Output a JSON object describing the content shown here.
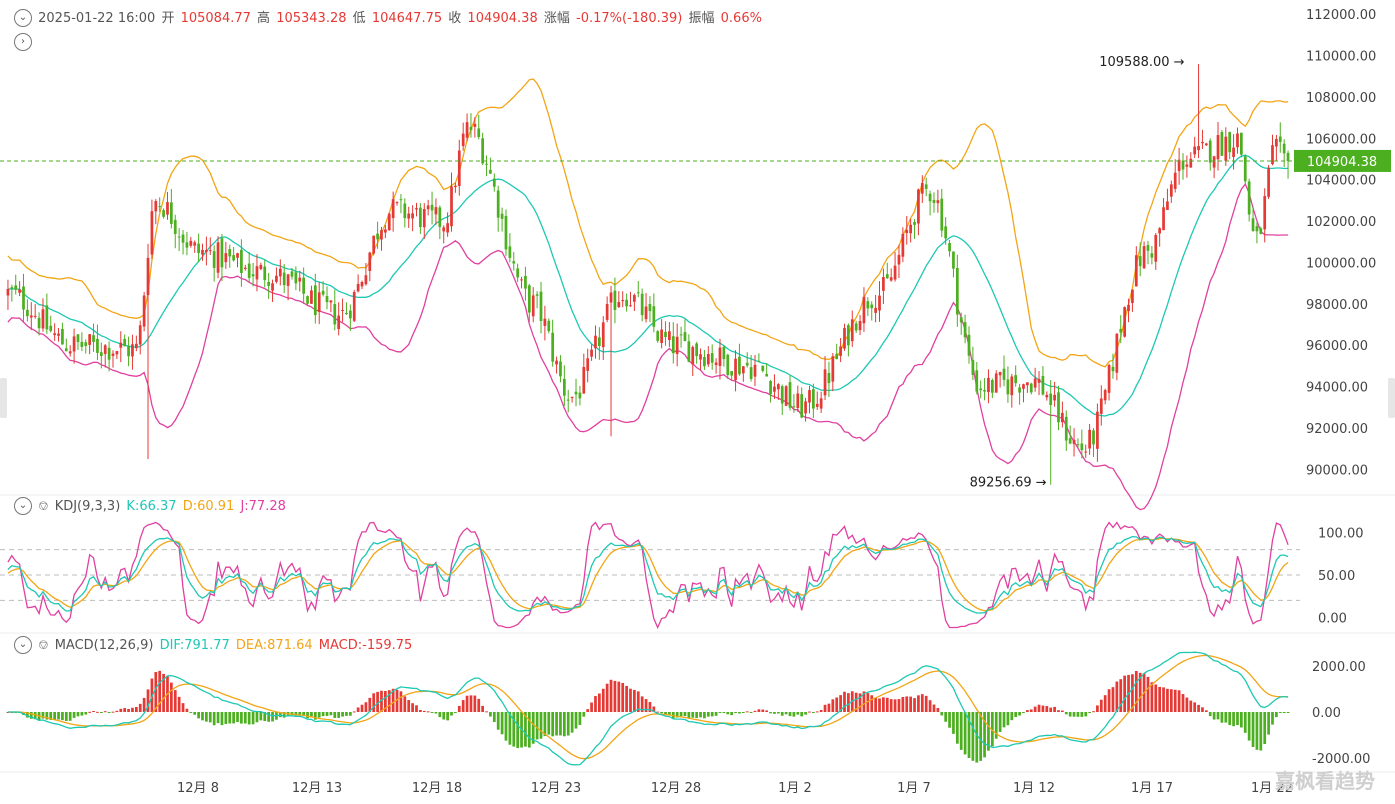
{
  "header": {
    "date": "2025-01-22 16:00",
    "open_label": "开",
    "open": "105084.77",
    "high_label": "高",
    "high": "105343.28",
    "low_label": "低",
    "low": "104647.75",
    "close_label": "收",
    "close": "104904.38",
    "change_label": "涨幅",
    "change": "-0.17%(-180.39)",
    "amplitude_label": "振幅",
    "amplitude": "0.66%"
  },
  "kdj": {
    "name": "KDJ(9,3,3)",
    "k": "K:66.37",
    "d": "D:60.91",
    "j": "J:77.28"
  },
  "macd": {
    "name": "MACD(12,26,9)",
    "dif": "DIF:791.77",
    "dea": "DEA:871.64",
    "macd": "MACD:-159.75"
  },
  "current_price_tag": "104904.38",
  "annotations": {
    "max": "109588.00",
    "min": "89256.69"
  },
  "watermark": "嘉枫看趋势",
  "colors": {
    "up": "#e53935",
    "down": "#4caf1f",
    "mid": "#1ec8b4",
    "upper": "#f2a516",
    "lower": "#e040a0"
  },
  "chart_data": [
    {
      "type": "candlestick",
      "x_tick_labels": [
        "12月 8",
        "12月 13",
        "12月 18",
        "12月 23",
        "12月 28",
        "1月 2",
        "1月 7",
        "1月 12",
        "1月 17",
        "1月 22"
      ],
      "y_tick_labels": [
        "112000.00",
        "110000.00",
        "108000.00",
        "106000.00",
        "104000.00",
        "102000.00",
        "100000.00",
        "98000.00",
        "96000.00",
        "94000.00",
        "92000.00",
        "90000.00"
      ],
      "ylim": [
        89000,
        112200
      ],
      "trend_keypoints": [
        [
          0,
          98500
        ],
        [
          0.05,
          96000
        ],
        [
          0.1,
          95800
        ],
        [
          0.115,
          103000
        ],
        [
          0.15,
          100500
        ],
        [
          0.2,
          99500
        ],
        [
          0.26,
          97500
        ],
        [
          0.3,
          102500
        ],
        [
          0.34,
          102000
        ],
        [
          0.36,
          106500
        ],
        [
          0.41,
          98000
        ],
        [
          0.44,
          93500
        ],
        [
          0.48,
          98500
        ],
        [
          0.52,
          96000
        ],
        [
          0.58,
          95000
        ],
        [
          0.62,
          93000
        ],
        [
          0.68,
          98500
        ],
        [
          0.72,
          103500
        ],
        [
          0.76,
          94000
        ],
        [
          0.8,
          94300
        ],
        [
          0.84,
          91000
        ],
        [
          0.89,
          100500
        ],
        [
          0.92,
          105000
        ],
        [
          0.96,
          106000
        ],
        [
          0.975,
          101000
        ],
        [
          0.99,
          105300
        ],
        [
          1,
          104904
        ]
      ],
      "bollinger": {
        "upper_series": "upper band",
        "mid_series": "middle band",
        "lower_series": "lower band"
      },
      "last_close": 104904.38,
      "max_marker": 109588.0,
      "min_marker": 89256.69
    },
    {
      "type": "line",
      "title": "KDJ(9,3,3)",
      "y_tick_labels": [
        "100.00",
        "50.00",
        "0.00"
      ],
      "ylim": [
        -15,
        115
      ],
      "reference_lines": [
        20,
        50,
        80
      ],
      "last": {
        "K": 66.37,
        "D": 60.91,
        "J": 77.28
      }
    },
    {
      "type": "bar",
      "title": "MACD(12,26,9)",
      "y_tick_labels": [
        "2000.00",
        "0.00",
        "-2000.00"
      ],
      "ylim": [
        -2600,
        2600
      ],
      "last": {
        "DIF": 791.77,
        "DEA": 871.64,
        "MACD": -159.75
      }
    }
  ]
}
